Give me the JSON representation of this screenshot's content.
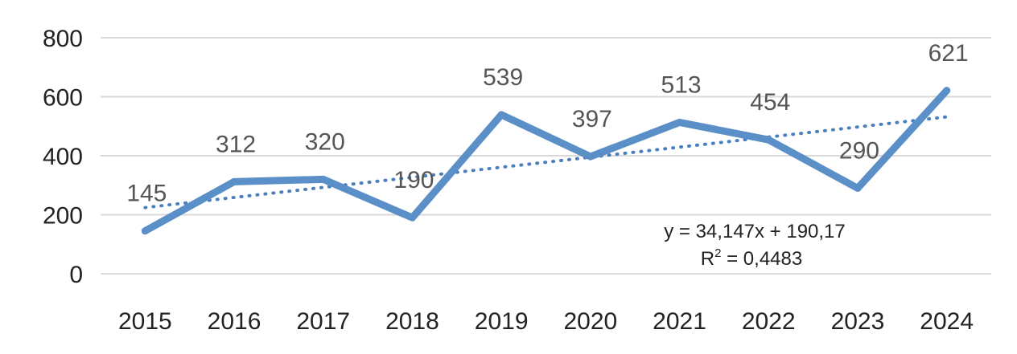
{
  "chart_data": {
    "type": "line",
    "title": "",
    "xlabel": "",
    "ylabel": "",
    "categories": [
      "2015",
      "2016",
      "2017",
      "2018",
      "2019",
      "2020",
      "2021",
      "2022",
      "2023",
      "2024"
    ],
    "series": [
      {
        "values": [
          145,
          312,
          320,
          190,
          539,
          397,
          513,
          454,
          290,
          621
        ]
      }
    ],
    "ylim": [
      0,
      800
    ],
    "yticks": [
      0,
      200,
      400,
      600,
      800
    ],
    "grid": true,
    "data_labels": true,
    "trendline": {
      "type": "linear",
      "slope": 34.147,
      "intercept": 190.17,
      "equation_text": "y = 34,147x + 190,17",
      "r2_prefix": "R",
      "r2_exponent": "2",
      "r2_value_text": " = 0,4483"
    },
    "colors": {
      "series": "#5b8fc7",
      "trendline": "#4a7fbf",
      "grid": "#d9d9d9"
    }
  }
}
